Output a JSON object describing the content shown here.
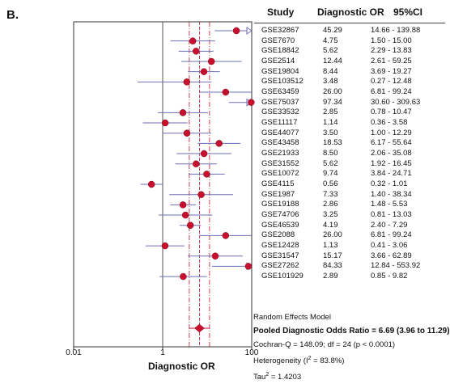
{
  "panel_label": "B.",
  "headers": {
    "study": "Study",
    "or": "Diagnostic OR",
    "ci": "95%CI"
  },
  "chart_data": {
    "type": "forest",
    "xlabel": "Diagnostic OR",
    "xscale": "log",
    "xlim": [
      0.01,
      100
    ],
    "xticks": [
      "0.01",
      "1",
      "100"
    ],
    "studies": [
      {
        "name": "GSE32867",
        "or": 45.29,
        "lo": 14.66,
        "hi": 139.88,
        "or_text": "45.29",
        "ci_text": "14.66 - 139.88"
      },
      {
        "name": "GSE7670",
        "or": 4.75,
        "lo": 1.5,
        "hi": 15.0,
        "or_text": "4.75",
        "ci_text": "1.50 - 15.00"
      },
      {
        "name": "GSE18842",
        "or": 5.62,
        "lo": 2.29,
        "hi": 13.83,
        "or_text": "5.62",
        "ci_text": "2.29 - 13.83"
      },
      {
        "name": "GSE2514",
        "or": 12.44,
        "lo": 2.61,
        "hi": 59.25,
        "or_text": "12.44",
        "ci_text": "2.61 - 59.25"
      },
      {
        "name": "GSE19804",
        "or": 8.44,
        "lo": 3.69,
        "hi": 19.27,
        "or_text": "8.44",
        "ci_text": "3.69 - 19.27"
      },
      {
        "name": "GSE103512",
        "or": 3.48,
        "lo": 0.27,
        "hi": 12.48,
        "or_text": "3.48",
        "ci_text": "0.27 - 12.48"
      },
      {
        "name": "GSE63459",
        "or": 26.0,
        "lo": 6.81,
        "hi": 99.24,
        "or_text": "26.00",
        "ci_text": "6.81 - 99.24"
      },
      {
        "name": "GSE75037",
        "or": 97.34,
        "lo": 30.6,
        "hi": 309.63,
        "or_text": "97.34",
        "ci_text": "30.60 - 309.63"
      },
      {
        "name": "GSE33532",
        "or": 2.85,
        "lo": 0.78,
        "hi": 10.47,
        "or_text": "2.85",
        "ci_text": "0.78 - 10.47"
      },
      {
        "name": "GSE11117",
        "or": 1.14,
        "lo": 0.36,
        "hi": 3.58,
        "or_text": "1.14",
        "ci_text": "0.36 - 3.58"
      },
      {
        "name": "GSE44077",
        "or": 3.5,
        "lo": 1.0,
        "hi": 12.29,
        "or_text": "3.50",
        "ci_text": "1.00 - 12.29"
      },
      {
        "name": "GSE43458",
        "or": 18.53,
        "lo": 6.17,
        "hi": 55.64,
        "or_text": "18.53",
        "ci_text": "6.17 - 55.64"
      },
      {
        "name": "GSE21933",
        "or": 8.5,
        "lo": 2.06,
        "hi": 35.08,
        "or_text": "8.50",
        "ci_text": "2.06 - 35.08"
      },
      {
        "name": "GSE31552",
        "or": 5.62,
        "lo": 1.92,
        "hi": 16.45,
        "or_text": "5.62",
        "ci_text": "1.92 - 16.45"
      },
      {
        "name": "GSE10072",
        "or": 9.74,
        "lo": 3.84,
        "hi": 24.71,
        "or_text": "9.74",
        "ci_text": "3.84 - 24.71"
      },
      {
        "name": "GSE4115",
        "or": 0.56,
        "lo": 0.32,
        "hi": 1.01,
        "or_text": "0.56",
        "ci_text": "0.32 - 1.01"
      },
      {
        "name": "GSE1987",
        "or": 7.33,
        "lo": 1.4,
        "hi": 38.34,
        "or_text": "7.33",
        "ci_text": "1.40 - 38.34"
      },
      {
        "name": "GSE19188",
        "or": 2.86,
        "lo": 1.48,
        "hi": 5.53,
        "or_text": "2.86",
        "ci_text": "1.48 - 5.53"
      },
      {
        "name": "GSE74706",
        "or": 3.25,
        "lo": 0.81,
        "hi": 13.03,
        "or_text": "3.25",
        "ci_text": "0.81 - 13.03"
      },
      {
        "name": "GSE46539",
        "or": 4.19,
        "lo": 2.4,
        "hi": 7.29,
        "or_text": "4.19",
        "ci_text": "2.40 - 7.29"
      },
      {
        "name": "GSE2088",
        "or": 26.0,
        "lo": 6.81,
        "hi": 99.24,
        "or_text": "26.00",
        "ci_text": "6.81 - 99.24"
      },
      {
        "name": "GSE12428",
        "or": 1.13,
        "lo": 0.41,
        "hi": 3.06,
        "or_text": "1.13",
        "ci_text": "0.41 - 3.06"
      },
      {
        "name": "GSE31547",
        "or": 15.17,
        "lo": 3.66,
        "hi": 62.89,
        "or_text": "15.17",
        "ci_text": "3.66 - 62.89"
      },
      {
        "name": "GSE27262",
        "or": 84.33,
        "lo": 12.84,
        "hi": 553.92,
        "or_text": "84.33",
        "ci_text": "12.84 - 553.92"
      },
      {
        "name": "GSE101929",
        "or": 2.89,
        "lo": 0.85,
        "hi": 9.82,
        "or_text": "2.89",
        "ci_text": "0.85 - 9.82"
      }
    ],
    "pooled": {
      "or": 6.69,
      "lo": 3.96,
      "hi": 11.29
    }
  },
  "summary": {
    "model": "Random Effects Model",
    "pooled": "Pooled Diagnostic Odds Ratio = 6.69 (3.96 to 11.29)",
    "cochran": "Cochran-Q = 148.09; df = 24 (p < 0.0001)",
    "het_prefix": "Heterogeneity (I",
    "het_sup": "2",
    "het_suffix": " = 83.8%)",
    "tau_prefix": "Tau",
    "tau_sup": "2",
    "tau_suffix": " = 1.4203"
  },
  "colors": {
    "marker": "#c8102e",
    "ci_line": "#6b6fb5",
    "ref_line": "#c8102e",
    "axis": "#333333"
  }
}
